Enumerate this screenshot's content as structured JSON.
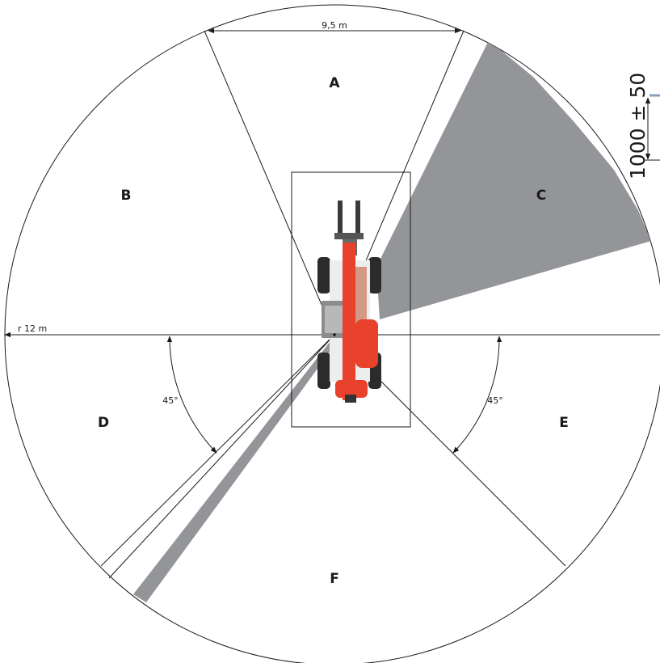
{
  "zones": {
    "a": "A",
    "b": "B",
    "c": "C",
    "d": "D",
    "e": "E",
    "f": "F"
  },
  "dimensions": {
    "width_top": "9,5 m",
    "radius": "r 12 m",
    "angle_left": "45°",
    "angle_right": "45°",
    "height_offset": "1000 ± 50"
  },
  "colors": {
    "blind_spot": "#939598",
    "machine_body": "#e8412c",
    "machine_dark": "#2b2b2b",
    "machine_grey": "#8c8c8c"
  }
}
